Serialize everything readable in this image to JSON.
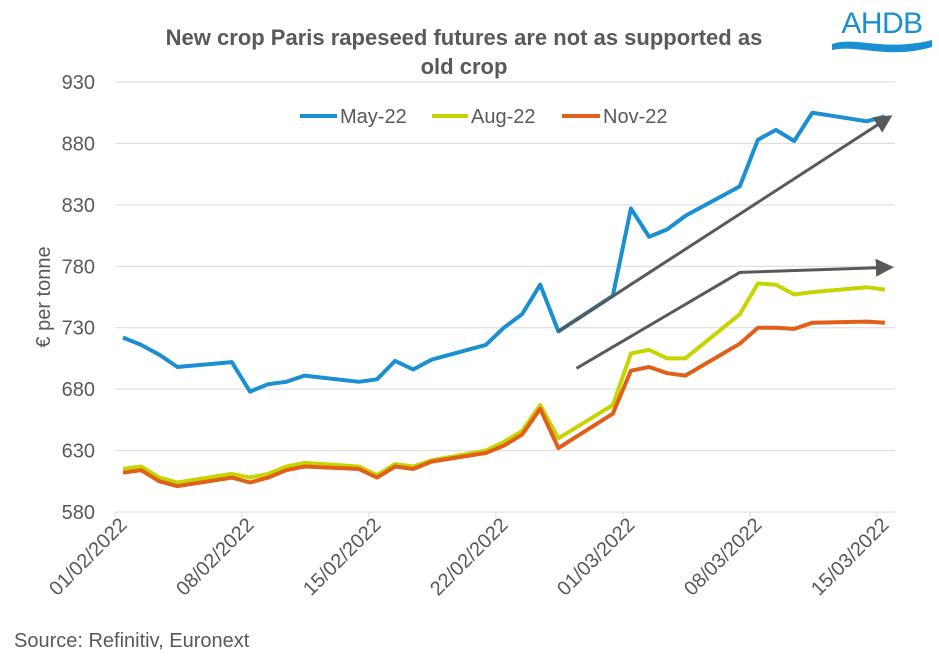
{
  "logo": {
    "text": "AHDB",
    "color": "#1a8fd1"
  },
  "source": "Source: Refinitiv, Euronext",
  "chart_data": {
    "type": "line",
    "title_lines": [
      "New crop Paris rapeseed futures are not as supported as",
      "old crop"
    ],
    "xlabel": "",
    "ylabel": "€ per tonne",
    "ylim": [
      580,
      930
    ],
    "yticks": [
      580,
      630,
      680,
      730,
      780,
      830,
      880,
      930
    ],
    "xtick_labels": [
      "01/02/2022",
      "08/02/2022",
      "15/02/2022",
      "22/02/2022",
      "01/03/2022",
      "08/03/2022",
      "15/03/2022"
    ],
    "grid": true,
    "legend_position": "top-center",
    "x": [
      "01/02/2022",
      "02/02/2022",
      "03/02/2022",
      "04/02/2022",
      "07/02/2022",
      "08/02/2022",
      "09/02/2022",
      "10/02/2022",
      "11/02/2022",
      "14/02/2022",
      "15/02/2022",
      "16/02/2022",
      "17/02/2022",
      "18/02/2022",
      "21/02/2022",
      "22/02/2022",
      "23/02/2022",
      "24/02/2022",
      "25/02/2022",
      "28/02/2022",
      "01/03/2022",
      "02/03/2022",
      "03/03/2022",
      "04/03/2022",
      "07/03/2022",
      "08/03/2022",
      "09/03/2022",
      "10/03/2022",
      "11/03/2022",
      "14/03/2022",
      "15/03/2022"
    ],
    "series": [
      {
        "name": "May-22",
        "color": "#1a8fd1",
        "values": [
          722,
          716,
          708,
          698,
          702,
          678,
          684,
          686,
          691,
          686,
          688,
          703,
          696,
          704,
          716,
          730,
          741,
          765,
          727,
          756,
          827,
          804,
          810,
          821,
          845,
          883,
          891,
          882,
          905,
          898,
          902
        ]
      },
      {
        "name": "Aug-22",
        "color": "#c8d400",
        "values": [
          615,
          617,
          608,
          604,
          611,
          608,
          611,
          617,
          620,
          617,
          610,
          619,
          617,
          622,
          630,
          637,
          646,
          667,
          640,
          667,
          709,
          712,
          705,
          705,
          741,
          766,
          765,
          757,
          759,
          763,
          761
        ]
      },
      {
        "name": "Nov-22",
        "color": "#e0601a",
        "values": [
          612,
          614,
          605,
          601,
          608,
          604,
          608,
          614,
          617,
          615,
          608,
          617,
          615,
          621,
          628,
          634,
          643,
          664,
          632,
          660,
          695,
          698,
          693,
          691,
          717,
          730,
          730,
          729,
          734,
          735,
          734
        ]
      }
    ],
    "annotations": [
      {
        "type": "arrow",
        "description": "old crop trend",
        "color": "#595959",
        "points": [
          [
            "25/02/2022",
            727
          ],
          [
            "15/03/2022",
            899
          ]
        ]
      },
      {
        "type": "arrow",
        "description": "new crop trend",
        "color": "#595959",
        "points": [
          [
            "26/02/2022",
            697
          ],
          [
            "07/03/2022",
            775
          ],
          [
            "15/03/2022",
            779
          ]
        ]
      }
    ]
  }
}
